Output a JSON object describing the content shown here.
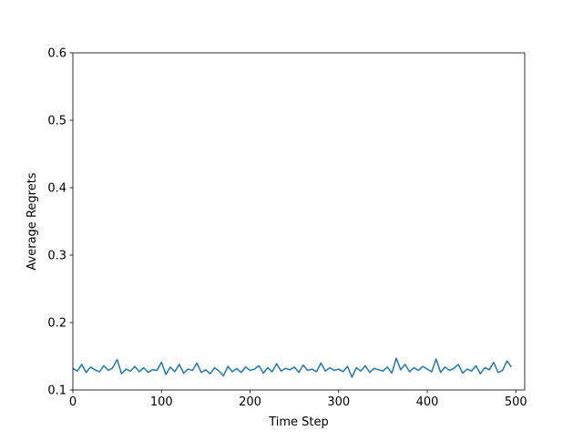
{
  "chart_data": {
    "type": "line",
    "xlabel": "Time Step",
    "ylabel": "Average Regrets",
    "x": [
      0,
      5,
      10,
      15,
      20,
      25,
      30,
      35,
      40,
      45,
      50,
      55,
      60,
      65,
      70,
      75,
      80,
      85,
      90,
      95,
      100,
      105,
      110,
      115,
      120,
      125,
      130,
      135,
      140,
      145,
      150,
      155,
      160,
      165,
      170,
      175,
      180,
      185,
      190,
      195,
      200,
      205,
      210,
      215,
      220,
      225,
      230,
      235,
      240,
      245,
      250,
      255,
      260,
      265,
      270,
      275,
      280,
      285,
      290,
      295,
      300,
      305,
      310,
      315,
      320,
      325,
      330,
      335,
      340,
      345,
      350,
      355,
      360,
      365,
      370,
      375,
      380,
      385,
      390,
      395,
      400,
      405,
      410,
      415,
      420,
      425,
      430,
      435,
      440,
      445,
      450,
      455,
      460,
      465,
      470,
      475,
      480,
      485,
      490,
      495
    ],
    "values": [
      0.132,
      0.128,
      0.138,
      0.126,
      0.134,
      0.13,
      0.127,
      0.136,
      0.129,
      0.133,
      0.145,
      0.124,
      0.131,
      0.128,
      0.135,
      0.127,
      0.133,
      0.126,
      0.13,
      0.129,
      0.141,
      0.123,
      0.134,
      0.127,
      0.138,
      0.125,
      0.131,
      0.129,
      0.14,
      0.126,
      0.13,
      0.124,
      0.133,
      0.128,
      0.121,
      0.135,
      0.127,
      0.132,
      0.126,
      0.134,
      0.129,
      0.131,
      0.136,
      0.125,
      0.133,
      0.127,
      0.139,
      0.128,
      0.132,
      0.13,
      0.134,
      0.126,
      0.137,
      0.129,
      0.131,
      0.127,
      0.14,
      0.128,
      0.133,
      0.129,
      0.131,
      0.127,
      0.135,
      0.119,
      0.133,
      0.128,
      0.136,
      0.126,
      0.132,
      0.13,
      0.128,
      0.134,
      0.125,
      0.147,
      0.13,
      0.138,
      0.127,
      0.133,
      0.129,
      0.135,
      0.131,
      0.127,
      0.146,
      0.126,
      0.134,
      0.129,
      0.132,
      0.138,
      0.125,
      0.131,
      0.128,
      0.136,
      0.124,
      0.133,
      0.13,
      0.141,
      0.126,
      0.129,
      0.143,
      0.134
    ],
    "color": "#1f77b4",
    "xlim": [
      0,
      510
    ],
    "xticks": [
      0,
      100,
      200,
      300,
      400,
      500
    ],
    "ylim": [
      0.1,
      0.6
    ],
    "yticks": [
      0.1,
      0.2,
      0.3,
      0.4,
      0.5,
      0.6
    ]
  }
}
